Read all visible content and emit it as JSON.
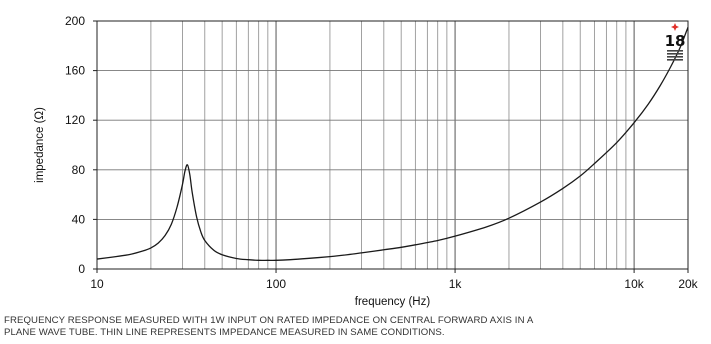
{
  "chart_data": {
    "type": "line",
    "title": "",
    "xlabel": "frequency (Hz)",
    "ylabel": "impedance (Ω)",
    "x_scale": "log",
    "xlim": [
      10,
      20000
    ],
    "ylim": [
      0,
      200
    ],
    "x_ticks": [
      {
        "value": 10,
        "label": "10"
      },
      {
        "value": 100,
        "label": "100"
      },
      {
        "value": 1000,
        "label": "1k"
      },
      {
        "value": 10000,
        "label": "10k"
      },
      {
        "value": 20000,
        "label": "20k"
      }
    ],
    "y_ticks": [
      {
        "value": 0,
        "label": "0"
      },
      {
        "value": 40,
        "label": "40"
      },
      {
        "value": 80,
        "label": "80"
      },
      {
        "value": 120,
        "label": "120"
      },
      {
        "value": 160,
        "label": "160"
      },
      {
        "value": 200,
        "label": "200"
      }
    ],
    "grid": true,
    "series": [
      {
        "color": "#1a1a1a",
        "x": [
          10,
          12,
          15,
          18,
          20,
          22,
          24,
          26,
          28,
          30,
          31,
          32,
          33,
          34,
          36,
          38,
          40,
          45,
          50,
          60,
          70,
          80,
          90,
          100,
          120,
          150,
          200,
          250,
          300,
          400,
          500,
          600,
          800,
          1000,
          1500,
          2000,
          3000,
          4000,
          5000,
          6000,
          8000,
          10000,
          12000,
          14000,
          16000,
          18000,
          20000
        ],
        "y": [
          8,
          9.5,
          11.5,
          14.5,
          17,
          21,
          27,
          36,
          50,
          68,
          79,
          84,
          76,
          62,
          42,
          30,
          23,
          15,
          11.5,
          8.5,
          7.5,
          7,
          7,
          7,
          7.5,
          8.5,
          10,
          11.5,
          13,
          15.5,
          17.5,
          19.5,
          23,
          26.5,
          34,
          41,
          54,
          65,
          75,
          85,
          102,
          118,
          133,
          148,
          163,
          178,
          195
        ]
      }
    ]
  },
  "caption": {
    "line1": "FREQUENCY RESPONSE MEASURED WITH 1W INPUT ON RATED IMPEDANCE ON CENTRAL FORWARD AXIS IN A",
    "line2": "PLANE WAVE TUBE. THIN LINE REPRESENTS IMPEDANCE MEASURED IN SAME CONDITIONS."
  },
  "logo": {
    "text": "18",
    "accent_color": "#e0302a"
  }
}
